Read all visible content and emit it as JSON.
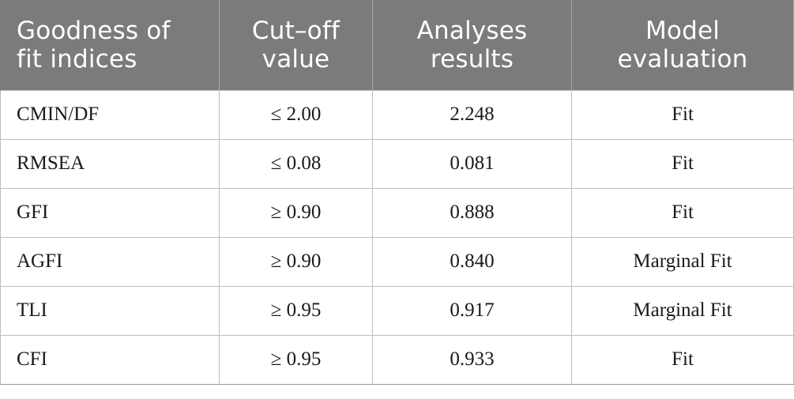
{
  "table": {
    "headers": [
      "Goodness of\nfit indices",
      "Cut–off\nvalue",
      "Analyses\nresults",
      "Model\nevaluation"
    ],
    "rows": [
      [
        "CMIN/DF",
        "≤ 2.00",
        "2.248",
        "Fit"
      ],
      [
        "RMSEA",
        "≤ 0.08",
        "0.081",
        "Fit"
      ],
      [
        "GFI",
        "≥ 0.90",
        "0.888",
        "Fit"
      ],
      [
        "AGFI",
        "≥ 0.90",
        "0.840",
        "Marginal Fit"
      ],
      [
        "TLI",
        "≥ 0.95",
        "0.917",
        "Marginal Fit"
      ],
      [
        "CFI",
        "≥ 0.95",
        "0.933",
        "Fit"
      ]
    ]
  },
  "colors": {
    "header_background": "#7b7b7b",
    "header_text": "#ffffff",
    "grid_line": "#bdbdbd"
  }
}
